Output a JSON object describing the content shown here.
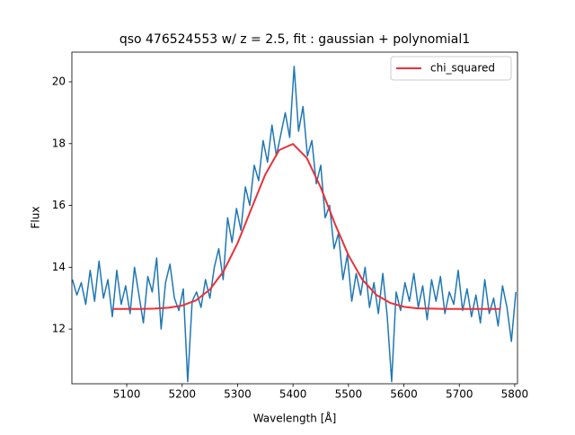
{
  "chart_data": {
    "type": "line",
    "title": "qso 476524553 w/ z = 2.5, fit : gaussian + polynomial1",
    "x_label": "Wavelength [Å]",
    "y_label": "Flux",
    "xlim": [
      5001,
      5805
    ],
    "ylim": [
      10.23,
      20.96
    ],
    "xticks": [
      5100,
      5200,
      5300,
      5400,
      5500,
      5600,
      5700,
      5800
    ],
    "yticks": [
      12,
      14,
      16,
      18,
      20
    ],
    "grid": false,
    "legend": "upper right",
    "series": [
      {
        "color": "#1f77b4",
        "x": [
          5002,
          5010,
          5018,
          5026,
          5034,
          5042,
          5050,
          5058,
          5066,
          5074,
          5082,
          5090,
          5098,
          5106,
          5114,
          5122,
          5130,
          5138,
          5146,
          5154,
          5162,
          5170,
          5178,
          5186,
          5194,
          5202,
          5210,
          5218,
          5226,
          5234,
          5242,
          5250,
          5258,
          5266,
          5274,
          5282,
          5290,
          5298,
          5306,
          5314,
          5322,
          5330,
          5338,
          5346,
          5354,
          5362,
          5370,
          5378,
          5386,
          5394,
          5402,
          5410,
          5418,
          5426,
          5434,
          5442,
          5450,
          5458,
          5466,
          5474,
          5482,
          5490,
          5498,
          5506,
          5514,
          5522,
          5530,
          5538,
          5546,
          5554,
          5562,
          5570,
          5578,
          5586,
          5594,
          5602,
          5610,
          5618,
          5626,
          5634,
          5642,
          5650,
          5658,
          5666,
          5674,
          5682,
          5690,
          5698,
          5706,
          5714,
          5722,
          5730,
          5738,
          5746,
          5754,
          5762,
          5770,
          5778,
          5786,
          5794,
          5802
        ],
        "values": [
          13.6,
          13.1,
          13.5,
          12.8,
          13.9,
          12.9,
          14.2,
          13.0,
          13.6,
          12.4,
          13.9,
          12.8,
          13.4,
          12.5,
          14.0,
          13.1,
          12.2,
          13.7,
          13.2,
          14.3,
          12.0,
          13.5,
          14.1,
          13.0,
          12.6,
          13.3,
          10.3,
          12.9,
          13.2,
          12.7,
          13.6,
          13.0,
          14.0,
          14.6,
          13.6,
          15.6,
          14.8,
          15.9,
          15.2,
          16.6,
          16.0,
          17.3,
          16.8,
          18.1,
          17.4,
          18.6,
          17.6,
          18.3,
          19.0,
          18.2,
          20.5,
          18.4,
          19.2,
          17.6,
          18.1,
          16.7,
          17.3,
          15.6,
          16.0,
          14.6,
          15.1,
          13.6,
          14.4,
          12.9,
          13.8,
          13.1,
          14.0,
          12.7,
          13.5,
          12.5,
          13.8,
          12.4,
          10.3,
          13.2,
          12.6,
          13.5,
          12.9,
          13.8,
          12.7,
          13.4,
          12.3,
          13.6,
          12.9,
          13.7,
          12.5,
          13.2,
          12.8,
          13.9,
          12.6,
          13.3,
          12.4,
          13.1,
          12.2,
          13.6,
          12.5,
          13.0,
          12.1,
          13.4,
          12.7,
          11.6,
          13.2
        ]
      },
      {
        "name": "chi_squared",
        "color": "#e8313a",
        "x": [
          5075,
          5100,
          5125,
          5150,
          5175,
          5200,
          5225,
          5250,
          5275,
          5300,
          5325,
          5350,
          5375,
          5400,
          5425,
          5450,
          5475,
          5500,
          5525,
          5550,
          5575,
          5600,
          5625,
          5650,
          5675,
          5700,
          5725,
          5750,
          5775
        ],
        "values": [
          12.65,
          12.65,
          12.65,
          12.66,
          12.69,
          12.76,
          12.93,
          13.28,
          13.88,
          14.78,
          15.9,
          17.0,
          17.79,
          17.99,
          17.53,
          16.58,
          15.43,
          14.39,
          13.6,
          13.11,
          12.85,
          12.72,
          12.67,
          12.66,
          12.65,
          12.65,
          12.65,
          12.65,
          12.65
        ]
      }
    ]
  }
}
